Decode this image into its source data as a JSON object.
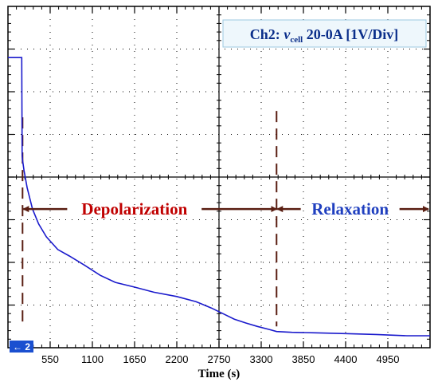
{
  "chart_data": {
    "type": "line",
    "xlabel": "Time (s)",
    "ylabel": "",
    "x_tick_labels": [
      "550",
      "1100",
      "1650",
      "2200",
      "2750",
      "3300",
      "3850",
      "4400",
      "4950"
    ],
    "x_ticks": [
      550,
      1100,
      1650,
      2200,
      2750,
      3300,
      3850,
      4400,
      4950
    ],
    "xlim": [
      0,
      5500
    ],
    "ylim": [
      -4,
      4
    ],
    "grid": true,
    "channel_label": {
      "prefix": "Ch2: ",
      "var": "v",
      "sub": "cell",
      "suffix": " 20-0A [1V/Div]"
    },
    "channel_marker": "← 2",
    "annotations": [
      {
        "text": "Depolarization",
        "color": "#c00000",
        "from_x": 190,
        "to_x": 3500
      },
      {
        "text": "Relaxation",
        "color": "#1f3fbf",
        "from_x": 3500,
        "to_x": 5500
      }
    ],
    "markers_x": [
      190,
      3500
    ],
    "series": [
      {
        "color": "#1a1acc",
        "x": [
          0,
          180,
          185,
          190,
          210,
          250,
          320,
          400,
          500,
          650,
          800,
          1000,
          1200,
          1400,
          1650,
          1900,
          2200,
          2450,
          2650,
          2800,
          2950,
          3100,
          3250,
          3400,
          3500,
          3700,
          4000,
          4400,
          4800,
          5200,
          5500
        ],
        "y": [
          2.8,
          2.8,
          0.5,
          0.4,
          0.15,
          -0.25,
          -0.75,
          -1.1,
          -1.4,
          -1.7,
          -1.85,
          -2.07,
          -2.3,
          -2.47,
          -2.58,
          -2.7,
          -2.8,
          -2.92,
          -3.07,
          -3.2,
          -3.33,
          -3.42,
          -3.5,
          -3.57,
          -3.62,
          -3.64,
          -3.65,
          -3.67,
          -3.69,
          -3.72,
          -3.72
        ]
      }
    ]
  }
}
